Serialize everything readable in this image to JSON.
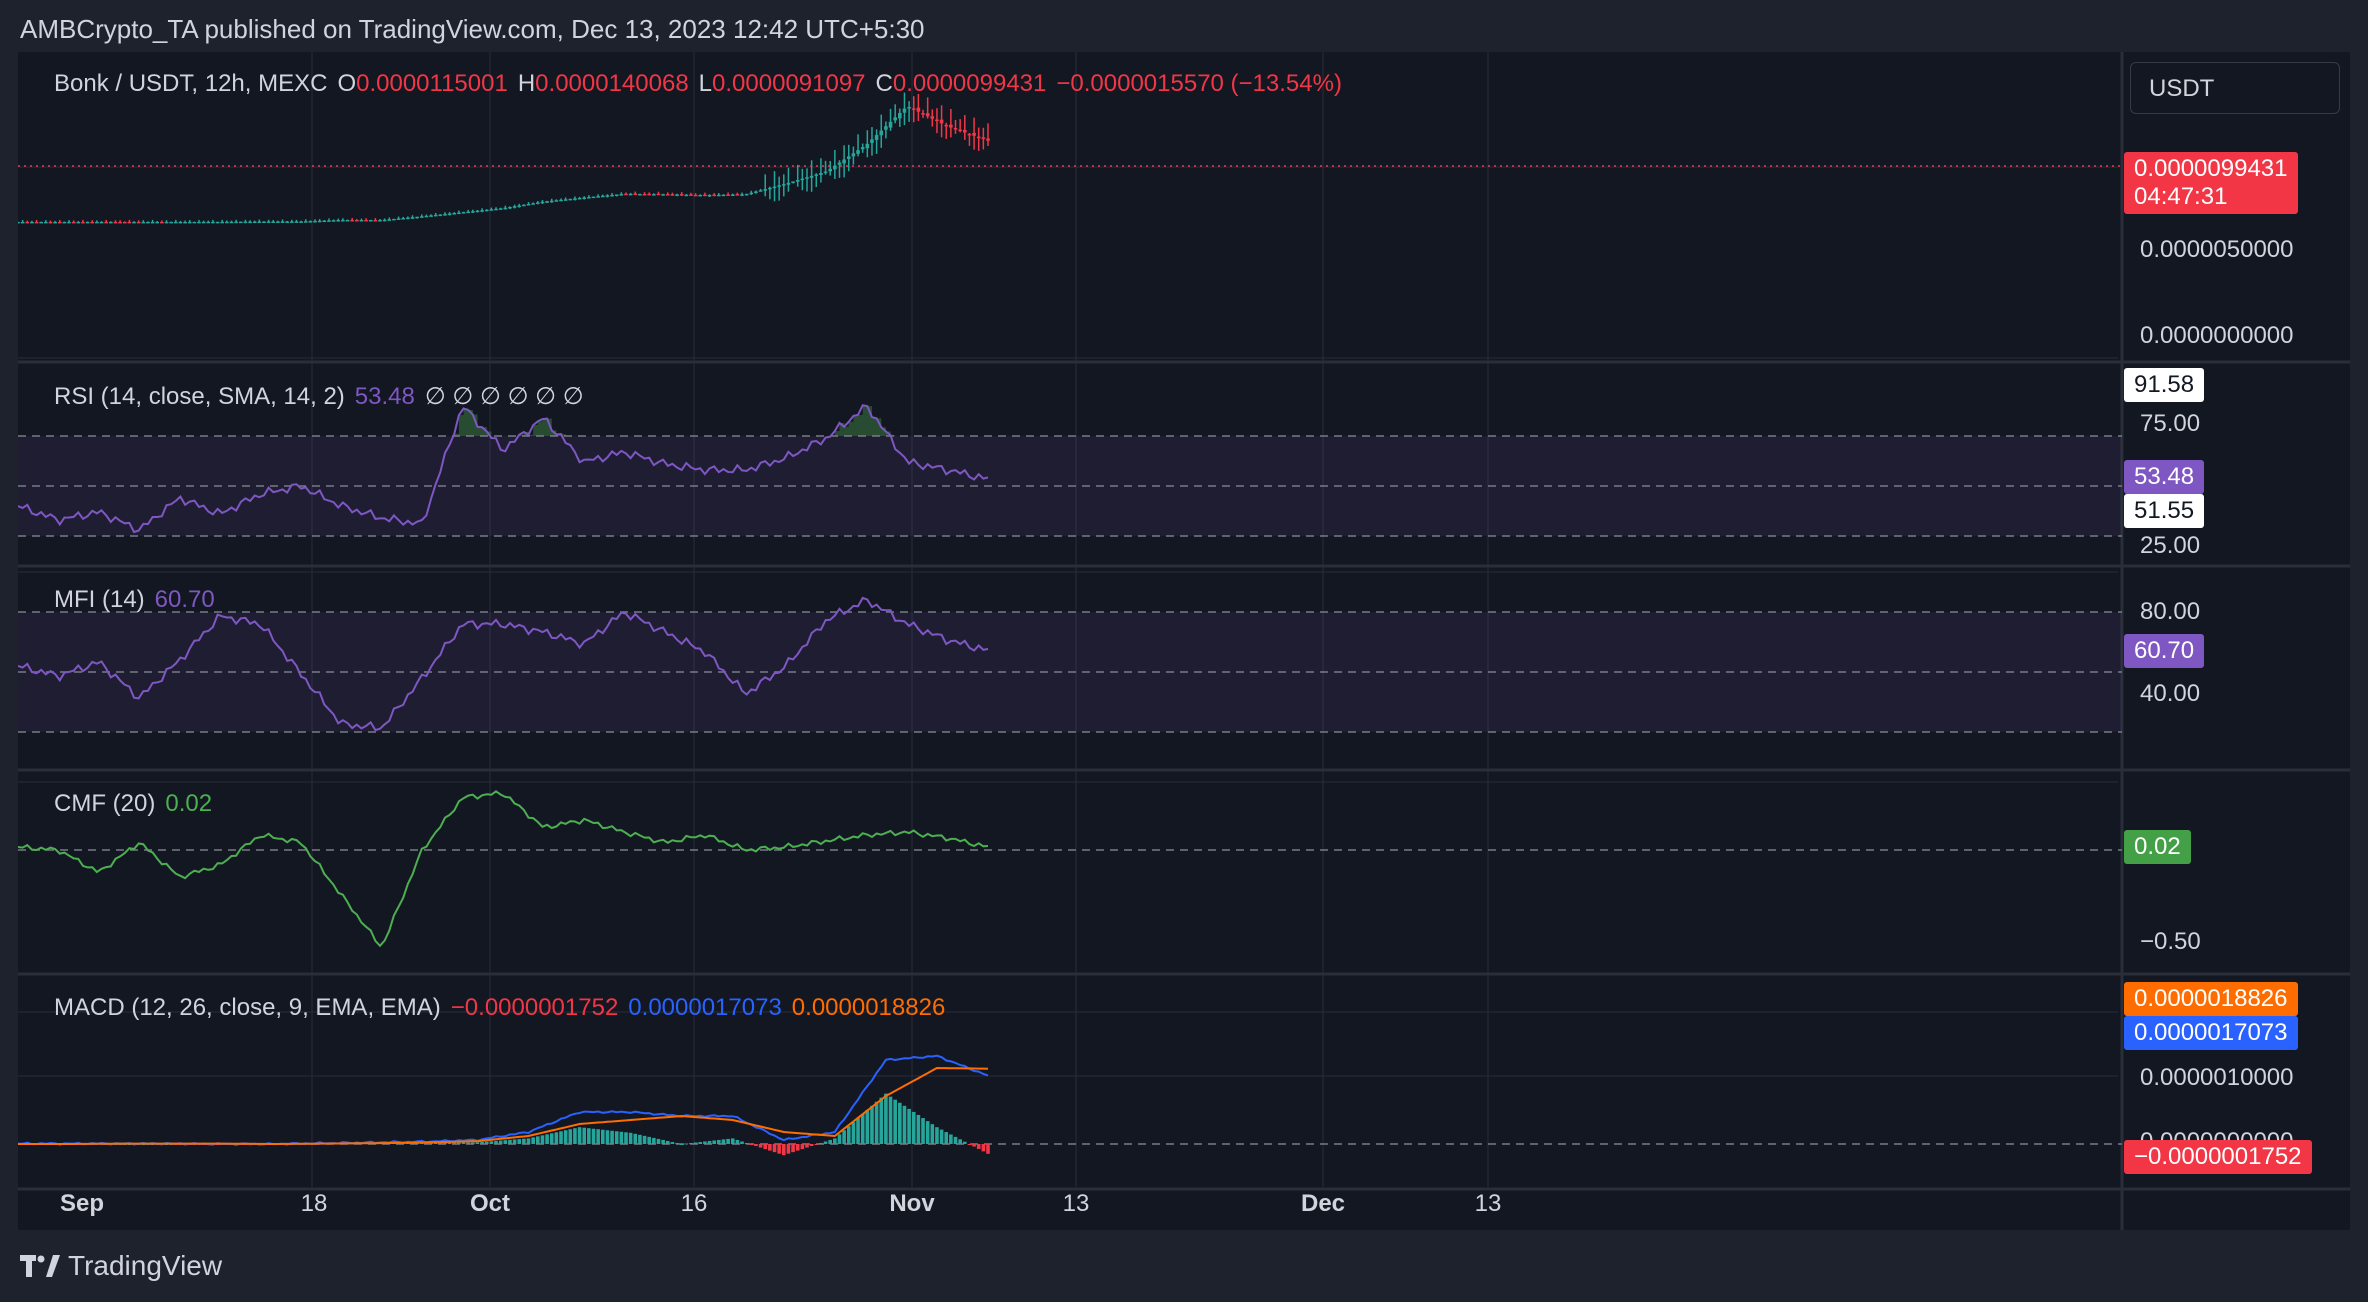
{
  "header": {
    "published_text": "AMBCrypto_TA published on TradingView.com, Dec 13, 2023 12:42 UTC+5:30"
  },
  "price_pane": {
    "symbol": "Bonk / USDT, 12h, MEXC",
    "o_label": "O",
    "o_value": "0.0000115001",
    "h_label": "H",
    "h_value": "0.0000140068",
    "l_label": "L",
    "l_value": "0.0000091097",
    "c_label": "C",
    "c_value": "0.0000099431",
    "change": "−0.0000015570 (−13.54%)",
    "currency_button": "USDT",
    "last_price_tag": "0.0000099431",
    "countdown": "04:47:31",
    "axis_labels": [
      "0.0000050000",
      "0.0000000000"
    ]
  },
  "rsi_pane": {
    "title": "RSI (14, close, SMA, 14, 2)",
    "value": "53.48",
    "nulls": "∅ ∅ ∅ ∅ ∅ ∅",
    "axis_labels": [
      "75.00",
      "25.00"
    ],
    "tag_high": "91.58",
    "tag_value": "53.48",
    "tag_sma": "51.55"
  },
  "mfi_pane": {
    "title": "MFI (14)",
    "value": "60.70",
    "axis_labels": [
      "80.00",
      "40.00"
    ],
    "tag_value": "60.70"
  },
  "cmf_pane": {
    "title": "CMF (20)",
    "value": "0.02",
    "axis_labels": [
      "−0.50"
    ],
    "tag_value": "0.02"
  },
  "macd_pane": {
    "title": "MACD (12, 26, close, 9, EMA, EMA)",
    "hist_value": "−0.0000001752",
    "macd_value": "0.0000017073",
    "signal_value": "0.0000018826",
    "axis_labels": [
      "0.0000010000",
      "0.0000000000"
    ],
    "tag_signal": "0.0000018826",
    "tag_macd": "0.0000017073",
    "tag_hist": "−0.0000001752"
  },
  "time_axis": [
    "Sep",
    "18",
    "Oct",
    "16",
    "Nov",
    "13",
    "Dec",
    "13"
  ],
  "brand": {
    "name": "TradingView"
  },
  "colors": {
    "up": "#26a69a",
    "down": "#f23645",
    "rsi": "#7e57c2",
    "cmf": "#4caf50",
    "macd": "#2962ff",
    "signal": "#ff6d00",
    "background": "#131722"
  },
  "chart_data": {
    "type": "line",
    "date_range": [
      "2023-09-01",
      "2023-12-13"
    ],
    "price_close": [
      1.2e-08,
      1.25e-08,
      1.3e-08,
      1.25e-08,
      1.4e-08,
      2.3e-08,
      5.8e-08,
      7e-08,
      2.5e-07,
      2.4e-07,
      7e-07,
      1.2e-06,
      1.7e-06,
      2.5e-06,
      3e-06,
      3.45e-06,
      3.4e-06,
      3.3e-06,
      3.4e-06,
      4.7e-06,
      6.2e-06,
      9.5e-06,
      1.42e-05,
      1.17e-05,
      9.9431e-06
    ],
    "rsi": [
      40,
      33,
      37,
      28,
      44,
      36,
      46,
      50,
      40,
      34,
      31,
      90,
      68,
      84,
      62,
      67,
      61,
      58,
      58,
      64,
      74,
      90,
      62,
      58,
      53.48
    ],
    "mfi": [
      53,
      48,
      55,
      37,
      56,
      78,
      74,
      49,
      24,
      22,
      47,
      74,
      74,
      70,
      64,
      80,
      70,
      60,
      39,
      53,
      76,
      86,
      74,
      66,
      60.7
    ],
    "cmf": [
      0.02,
      0.0,
      -0.15,
      0.05,
      -0.18,
      -0.1,
      0.1,
      0.05,
      -0.3,
      -0.65,
      0.0,
      0.35,
      0.38,
      0.15,
      0.2,
      0.12,
      0.05,
      0.1,
      0.0,
      0.02,
      0.06,
      0.1,
      0.12,
      0.08,
      0.02
    ],
    "macd": [
      1e-08,
      1e-08,
      1e-08,
      1e-08,
      0.0,
      0.0,
      2e-08,
      4e-08,
      6e-08,
      1e-07,
      3e-07,
      8e-07,
      8e-07,
      7e-07,
      7e-07,
      1e-07,
      3e-07,
      2.1e-06,
      2.2e-06,
      1.7073e-06
    ],
    "signal": [
      0.0,
      0.0,
      1e-08,
      1e-08,
      1e-08,
      0.0,
      1e-08,
      2e-08,
      4e-08,
      7e-08,
      2e-07,
      5e-07,
      6e-07,
      7e-07,
      6e-07,
      3e-07,
      2e-07,
      1.2e-06,
      1.9e-06,
      1.8826e-06
    ]
  }
}
